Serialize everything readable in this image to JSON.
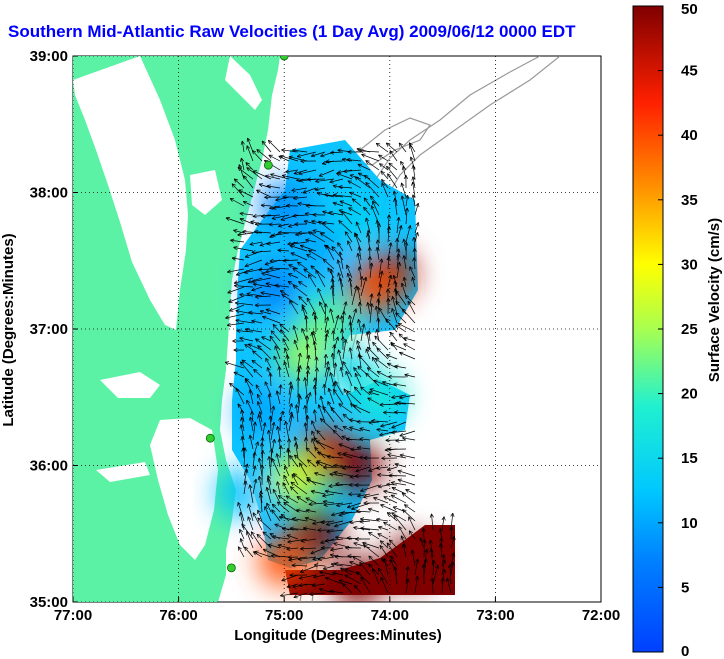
{
  "title": "Southern Mid-Atlantic Raw Velocities (1 Day Avg) 2009/06/12 0000 EDT",
  "chart_data": {
    "type": "heatmap",
    "title": "Southern Mid-Atlantic Raw Velocities (1 Day Avg) 2009/06/12 0000 EDT",
    "xlabel": "Longitude (Degrees:Minutes)",
    "ylabel": "Latitude (Degrees:Minutes)",
    "xlim": [
      -77,
      -72
    ],
    "ylim": [
      35,
      39
    ],
    "x_ticks": [
      -77,
      -76,
      -75,
      -74,
      -73,
      -72
    ],
    "y_ticks": [
      35,
      36,
      37,
      38,
      39
    ],
    "x_tick_labels": [
      "77:00",
      "76:00",
      "75:00",
      "74:00",
      "73:00",
      "72:00"
    ],
    "y_tick_labels": [
      "35:00",
      "36:00",
      "37:00",
      "38:00",
      "39:00"
    ],
    "grid": "dotted",
    "colorbar": {
      "label": "Surface Velocity (cm/s)",
      "range": [
        0,
        50
      ],
      "ticks": [
        0,
        5,
        10,
        15,
        20,
        25,
        30,
        35,
        40,
        45,
        50
      ],
      "tick_labels": [
        "0",
        "5",
        "10",
        "15",
        "20",
        "25",
        "30",
        "35",
        "40",
        "45",
        "50"
      ],
      "colormap": "jet",
      "position": "right"
    },
    "colors": {
      "land": "#5cf2a6",
      "coast_contour": "#999999",
      "vector": "#000000",
      "site_marker": "#33cc33"
    },
    "speed_field": [
      {
        "lon": -75.0,
        "lat": 37.9,
        "speed": 8
      },
      {
        "lon": -74.7,
        "lat": 37.6,
        "speed": 10
      },
      {
        "lon": -74.3,
        "lat": 37.8,
        "speed": 14
      },
      {
        "lon": -74.0,
        "lat": 37.4,
        "speed": 48
      },
      {
        "lon": -74.15,
        "lat": 37.3,
        "speed": 40
      },
      {
        "lon": -75.1,
        "lat": 37.3,
        "speed": 7
      },
      {
        "lon": -74.6,
        "lat": 37.05,
        "speed": 22
      },
      {
        "lon": -74.8,
        "lat": 36.8,
        "speed": 25
      },
      {
        "lon": -74.4,
        "lat": 36.7,
        "speed": 15
      },
      {
        "lon": -74.1,
        "lat": 36.5,
        "speed": 18
      },
      {
        "lon": -75.2,
        "lat": 36.4,
        "speed": 10
      },
      {
        "lon": -74.6,
        "lat": 36.1,
        "speed": 45
      },
      {
        "lon": -74.3,
        "lat": 36.0,
        "speed": 50
      },
      {
        "lon": -74.9,
        "lat": 35.9,
        "speed": 28
      },
      {
        "lon": -74.7,
        "lat": 35.5,
        "speed": 50
      },
      {
        "lon": -75.0,
        "lat": 35.3,
        "speed": 40
      },
      {
        "lon": -74.3,
        "lat": 35.15,
        "speed": 50
      },
      {
        "lon": -73.8,
        "lat": 35.3,
        "speed": 50
      },
      {
        "lon": -75.4,
        "lat": 35.8,
        "speed": 12
      }
    ],
    "sites": [
      {
        "lon": -75.0,
        "lat": 39.0
      },
      {
        "lon": -75.15,
        "lat": 38.2
      },
      {
        "lon": -75.7,
        "lat": 36.2
      },
      {
        "lon": -75.5,
        "lat": 35.25
      }
    ]
  }
}
